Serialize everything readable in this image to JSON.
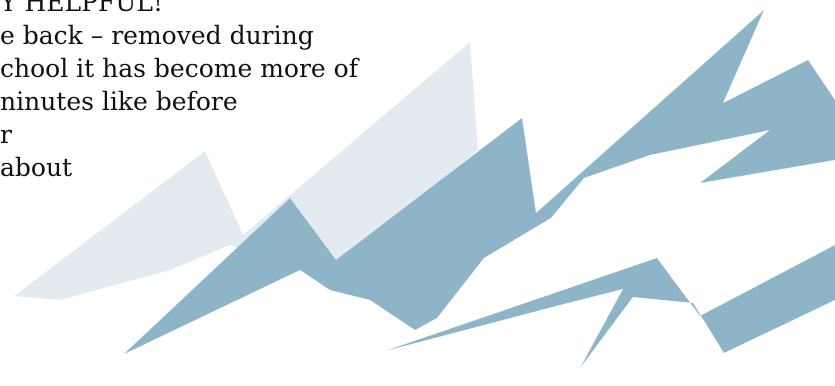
{
  "document": {
    "lines": [
      "Y HELPFUL!",
      "e back – removed during",
      "chool it has become more of",
      "ninutes like before",
      "r",
      " about"
    ]
  },
  "colors": {
    "light_mountain": "#e3ebf1",
    "dark_mountain": "#8eb4c8",
    "text": "#111111"
  },
  "icons": [
    "mountain-logo"
  ]
}
